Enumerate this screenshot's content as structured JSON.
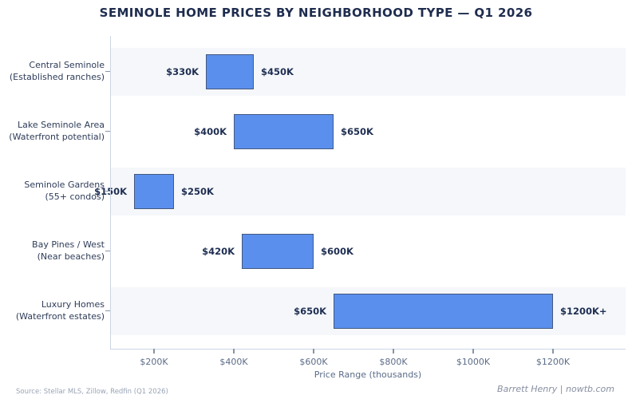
{
  "chart_data": {
    "type": "bar",
    "subtype": "horizontal_range_bars",
    "title": "SEMINOLE HOME PRICES BY NEIGHBORHOOD TYPE — Q1 2026",
    "xlabel": "Price Range (thousands)",
    "x_unit": "USD thousands",
    "xlim": [
      90,
      1382
    ],
    "grid": false,
    "legend": null,
    "x_ticks": [
      {
        "value": 200,
        "label": "$200K"
      },
      {
        "value": 400,
        "label": "$400K"
      },
      {
        "value": 600,
        "label": "$600K"
      },
      {
        "value": 800,
        "label": "$800K"
      },
      {
        "value": 1000,
        "label": "$1000K"
      },
      {
        "value": 1200,
        "label": "$1200K"
      }
    ],
    "rows": [
      {
        "name": "Central Seminole",
        "subtitle": "(Established ranches)",
        "min": 330,
        "max": 450,
        "min_label": "$330K",
        "max_label": "$450K",
        "shaded": true
      },
      {
        "name": "Lake Seminole Area",
        "subtitle": "(Waterfront potential)",
        "min": 400,
        "max": 650,
        "min_label": "$400K",
        "max_label": "$650K",
        "shaded": false
      },
      {
        "name": "Seminole Gardens",
        "subtitle": "(55+ condos)",
        "min": 150,
        "max": 250,
        "min_label": "$150K",
        "max_label": "$250K",
        "shaded": true
      },
      {
        "name": "Bay Pines / West",
        "subtitle": "(Near beaches)",
        "min": 420,
        "max": 600,
        "min_label": "$420K",
        "max_label": "$600K",
        "shaded": false
      },
      {
        "name": "Luxury Homes",
        "subtitle": "(Waterfront estates)",
        "min": 650,
        "max": 1200,
        "min_label": "$650K",
        "max_label": "$1200K+",
        "shaded": true
      }
    ],
    "colors": {
      "bar_fill": "#5a8fee",
      "bar_border": "#44597e",
      "band": "#f5f7fa",
      "title_text": "#1e2c4e",
      "value_label_text": "#1e2e52",
      "category_text": "#2e3c58",
      "axis_text": "#5c6c88",
      "spine": "#ccd6e4"
    }
  },
  "footer": {
    "source": "Source: Stellar MLS, Zillow, Redfin (Q1 2026)",
    "credit": "Barrett Henry | nowtb.com"
  }
}
